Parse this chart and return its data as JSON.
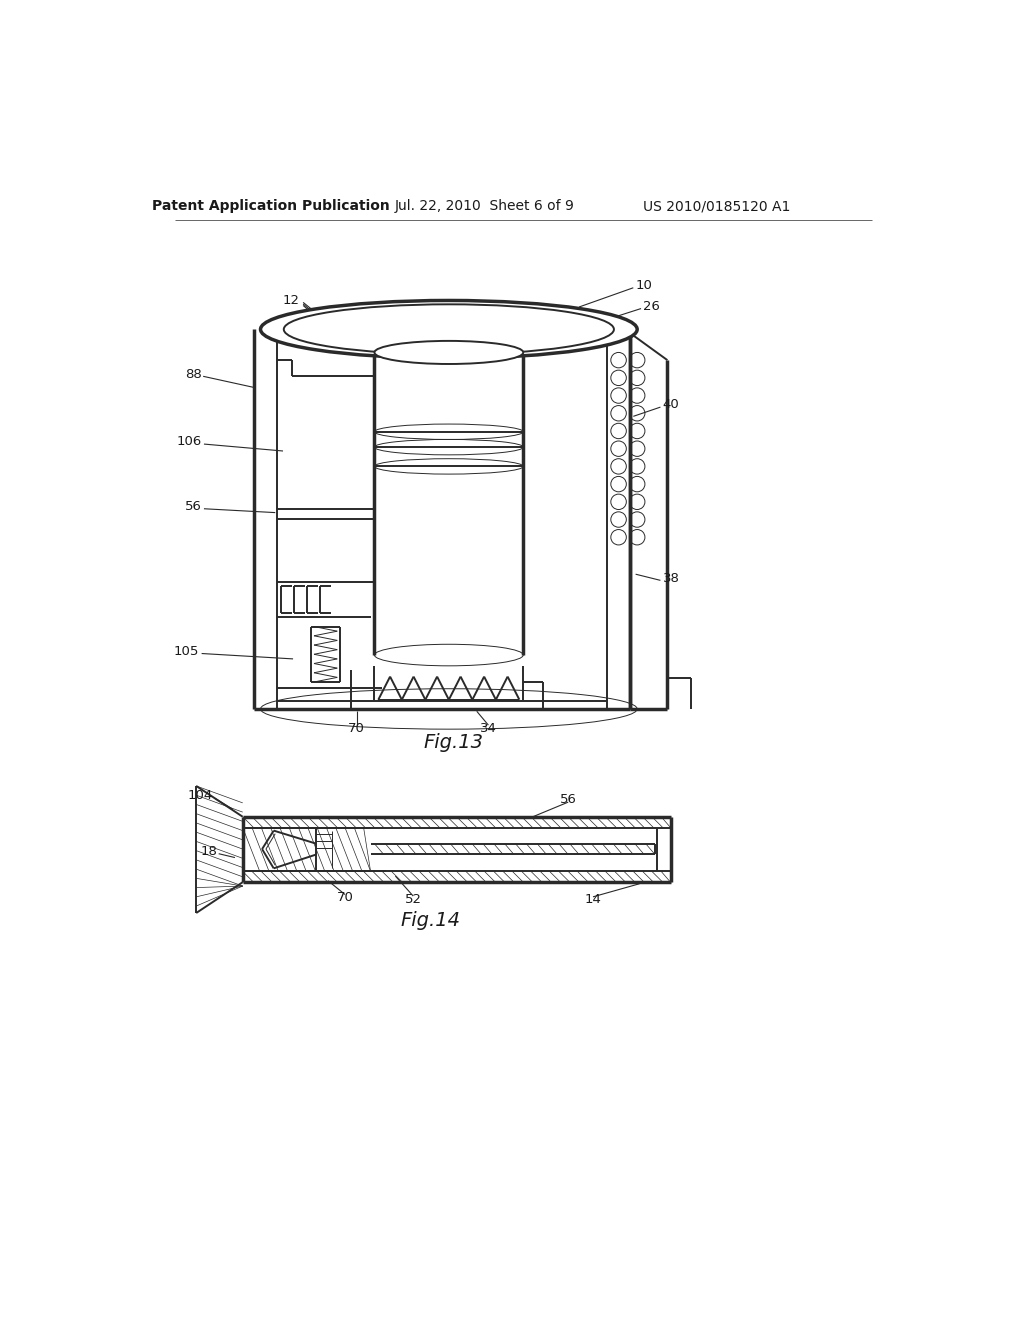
{
  "background_color": "#ffffff",
  "header_left": "Patent Application Publication",
  "header_mid": "Jul. 22, 2010  Sheet 6 of 9",
  "header_right": "US 2010/0185120 A1",
  "fig13_label": "Fig.13",
  "fig14_label": "Fig.14",
  "line_color": "#2a2a2a",
  "text_color": "#1a1a1a",
  "header_font_size": 10,
  "label_font_size": 9.5,
  "fig_label_font_size": 14,
  "lw_main": 1.4,
  "lw_thick": 2.5,
  "lw_thin": 0.7,
  "lw_hair": 0.5
}
